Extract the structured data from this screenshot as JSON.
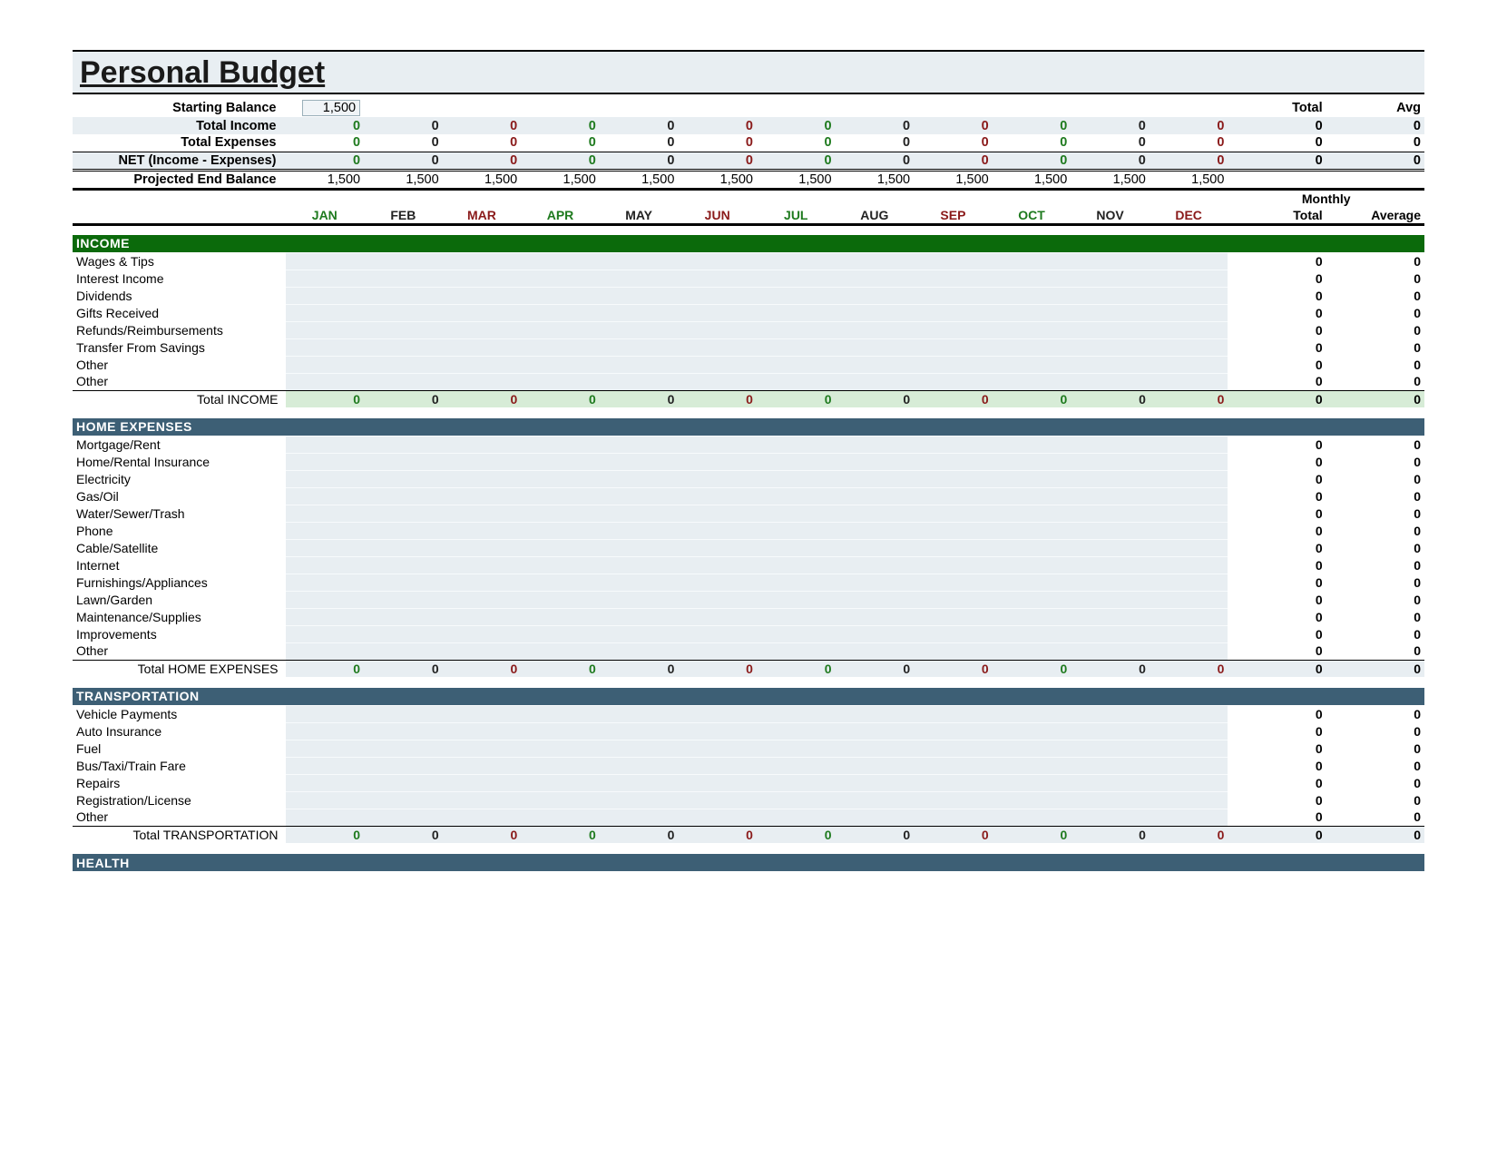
{
  "title": "Personal Budget",
  "months": [
    {
      "abbr": "JAN",
      "color": "#1e7a1e"
    },
    {
      "abbr": "FEB",
      "color": "#222222"
    },
    {
      "abbr": "MAR",
      "color": "#8a1a1a"
    },
    {
      "abbr": "APR",
      "color": "#1e7a1e"
    },
    {
      "abbr": "MAY",
      "color": "#222222"
    },
    {
      "abbr": "JUN",
      "color": "#8a1a1a"
    },
    {
      "abbr": "JUL",
      "color": "#1e7a1e"
    },
    {
      "abbr": "AUG",
      "color": "#222222"
    },
    {
      "abbr": "SEP",
      "color": "#8a1a1a"
    },
    {
      "abbr": "OCT",
      "color": "#1e7a1e"
    },
    {
      "abbr": "NOV",
      "color": "#222222"
    },
    {
      "abbr": "DEC",
      "color": "#8a1a1a"
    }
  ],
  "month_colors_seq": [
    "#1e7a1e",
    "#222222",
    "#8a1a1a",
    "#1e7a1e",
    "#222222",
    "#8a1a1a",
    "#1e7a1e",
    "#222222",
    "#8a1a1a",
    "#1e7a1e",
    "#222222",
    "#8a1a1a"
  ],
  "headers": {
    "total": "Total",
    "avg": "Avg",
    "monthly": "Monthly",
    "total2": "Total",
    "average": "Average"
  },
  "summary": {
    "starting_balance_label": "Starting Balance",
    "starting_balance_value": "1,500",
    "rows": [
      {
        "label": "Total Income",
        "vals": [
          "0",
          "0",
          "0",
          "0",
          "0",
          "0",
          "0",
          "0",
          "0",
          "0",
          "0",
          "0"
        ],
        "total": "0",
        "avg": "0",
        "band": "gray"
      },
      {
        "label": "Total Expenses",
        "vals": [
          "0",
          "0",
          "0",
          "0",
          "0",
          "0",
          "0",
          "0",
          "0",
          "0",
          "0",
          "0"
        ],
        "total": "0",
        "avg": "0",
        "band": "white"
      },
      {
        "label": "NET (Income - Expenses)",
        "vals": [
          "0",
          "0",
          "0",
          "0",
          "0",
          "0",
          "0",
          "0",
          "0",
          "0",
          "0",
          "0"
        ],
        "total": "0",
        "avg": "0",
        "class": "net-line",
        "band": "gray"
      },
      {
        "label": "Projected End Balance",
        "vals": [
          "1,500",
          "1,500",
          "1,500",
          "1,500",
          "1,500",
          "1,500",
          "1,500",
          "1,500",
          "1,500",
          "1,500",
          "1,500",
          "1,500"
        ],
        "total": "",
        "avg": "",
        "class": "proj-line",
        "band": "white"
      }
    ]
  },
  "sections": [
    {
      "name": "INCOME",
      "bar_class": "bar-income",
      "subtotal_class": "income",
      "items": [
        "Wages & Tips",
        "Interest Income",
        "Dividends",
        "Gifts Received",
        "Refunds/Reimbursements",
        "Transfer From Savings",
        "Other",
        "Other"
      ],
      "subtotal_label": "Total INCOME"
    },
    {
      "name": "HOME EXPENSES",
      "bar_class": "bar-home",
      "subtotal_class": "",
      "items": [
        "Mortgage/Rent",
        "Home/Rental Insurance",
        "Electricity",
        "Gas/Oil",
        "Water/Sewer/Trash",
        "Phone",
        "Cable/Satellite",
        "Internet",
        "Furnishings/Appliances",
        "Lawn/Garden",
        "Maintenance/Supplies",
        "Improvements",
        "Other"
      ],
      "subtotal_label": "Total HOME EXPENSES"
    },
    {
      "name": "TRANSPORTATION",
      "bar_class": "bar-trans",
      "subtotal_class": "",
      "items": [
        "Vehicle Payments",
        "Auto Insurance",
        "Fuel",
        "Bus/Taxi/Train Fare",
        "Repairs",
        "Registration/License",
        "Other"
      ],
      "subtotal_label": "Total TRANSPORTATION"
    },
    {
      "name": "HEALTH",
      "bar_class": "bar-health",
      "subtotal_class": "",
      "items": [],
      "subtotal_label": ""
    }
  ],
  "zero": "0"
}
